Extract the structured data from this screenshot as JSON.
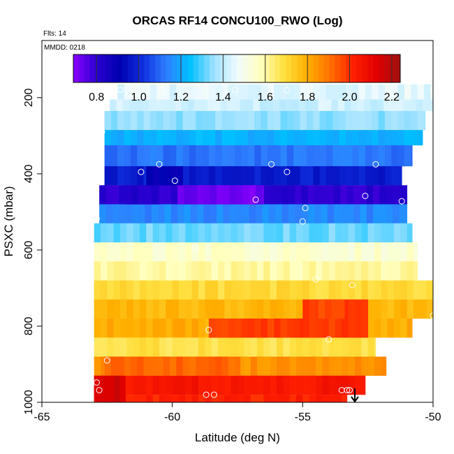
{
  "chart_data": {
    "type": "heatmap",
    "title": "ORCAS RF14 CONCU100_RWO (Log)",
    "annotations": [
      "Flts: 14",
      "MMDD: 0218"
    ],
    "xlabel": "Latitude (deg N)",
    "ylabel": "PSXC (mbar)",
    "xlim": [
      -65,
      -50
    ],
    "ylim": [
      1000,
      50
    ],
    "x_ticks": [
      -65,
      -60,
      -55,
      -50
    ],
    "x_tick_labels": [
      "-65",
      "-60",
      "-55",
      "-50"
    ],
    "y_ticks": [
      200,
      400,
      600,
      800,
      1000
    ],
    "y_tick_labels": [
      "200",
      "400",
      "600",
      "800",
      "1000"
    ],
    "colorbar": {
      "range": [
        0.69,
        2.24
      ],
      "ticks": [
        0.8,
        1.0,
        1.2,
        1.4,
        1.6,
        1.8,
        2.0,
        2.2
      ],
      "tick_labels": [
        "0.8",
        "1.0",
        "1.2",
        "1.4",
        "1.6",
        "1.8",
        "2.0",
        "2.2"
      ],
      "colors": [
        "#8b00ff",
        "#2a00d0",
        "#0000b0",
        "#1030e0",
        "#2f7fff",
        "#00c0ff",
        "#9be0ff",
        "#f0fbff",
        "#ffffc0",
        "#ffe040",
        "#ffb000",
        "#ff7000",
        "#ff2000",
        "#e00000",
        "#a01010"
      ]
    },
    "layers": [
      {
        "p_top": 165,
        "p_bot": 205,
        "lat_min": -62.1,
        "lat_max": -50,
        "value": 1.45
      },
      {
        "p_top": 205,
        "p_bot": 235,
        "lat_min": -62.4,
        "lat_max": -50,
        "value": 1.42
      },
      {
        "p_top": 235,
        "p_bot": 285,
        "lat_min": -62.6,
        "lat_max": -50.3,
        "value": 1.35
      },
      {
        "p_top": 285,
        "p_bot": 325,
        "lat_min": -62.6,
        "lat_max": -50.4,
        "value": 1.22
      },
      {
        "p_top": 325,
        "p_bot": 380,
        "lat_min": -62.6,
        "lat_max": -50.8,
        "value": 1.12
      },
      {
        "p_top": 380,
        "p_bot": 430,
        "lat_min": -62.6,
        "lat_max": -51.2,
        "value": 0.98
      },
      {
        "p_top": 430,
        "p_bot": 480,
        "lat_min": -62.8,
        "lat_max": -51.0,
        "value": 0.8
      },
      {
        "p_top": 480,
        "p_bot": 530,
        "lat_min": -62.8,
        "lat_max": -51.0,
        "value": 1.15
      },
      {
        "p_top": 530,
        "p_bot": 580,
        "lat_min": -63.0,
        "lat_max": -50.8,
        "value": 1.32
      },
      {
        "p_top": 580,
        "p_bot": 630,
        "lat_min": -63.0,
        "lat_max": -50.6,
        "value": 1.55
      },
      {
        "p_top": 630,
        "p_bot": 680,
        "lat_min": -63.0,
        "lat_max": -50.6,
        "value": 1.6
      },
      {
        "p_top": 680,
        "p_bot": 730,
        "lat_min": -63.0,
        "lat_max": -50,
        "value": 1.7
      },
      {
        "p_top": 730,
        "p_bot": 780,
        "lat_min": -63.0,
        "lat_max": -50,
        "value": 1.78
      },
      {
        "p_top": 780,
        "p_bot": 830,
        "lat_min": -63.0,
        "lat_max": -50.8,
        "value": 1.8
      },
      {
        "p_top": 830,
        "p_bot": 880,
        "lat_min": -63.0,
        "lat_max": -52.2,
        "value": 1.68
      },
      {
        "p_top": 880,
        "p_bot": 930,
        "lat_min": -63.0,
        "lat_max": -51.8,
        "value": 1.85
      },
      {
        "p_top": 930,
        "p_bot": 980,
        "lat_min": -63.0,
        "lat_max": -52.6,
        "value": 2.05
      },
      {
        "p_top": 980,
        "p_bot": 1000,
        "lat_min": -63.0,
        "lat_max": -53.3,
        "value": 2.02
      }
    ],
    "patches": [
      {
        "p_top": 430,
        "p_bot": 480,
        "lat_min": -59.8,
        "lat_max": -56.5,
        "value": 0.72
      },
      {
        "p_top": 430,
        "p_bot": 480,
        "lat_min": -61.8,
        "lat_max": -60.5,
        "value": 0.82
      },
      {
        "p_top": 380,
        "p_bot": 430,
        "lat_min": -61.0,
        "lat_max": -59.6,
        "value": 0.9
      },
      {
        "p_top": 730,
        "p_bot": 830,
        "lat_min": -55.0,
        "lat_max": -52.5,
        "value": 1.98
      },
      {
        "p_top": 780,
        "p_bot": 830,
        "lat_min": -58.6,
        "lat_max": -55.0,
        "value": 1.98
      },
      {
        "p_top": 880,
        "p_bot": 930,
        "lat_min": -62.6,
        "lat_max": -57.4,
        "value": 1.92
      },
      {
        "p_top": 930,
        "p_bot": 1000,
        "lat_min": -63.0,
        "lat_max": -61.8,
        "value": 2.15
      },
      {
        "p_top": 730,
        "p_bot": 780,
        "lat_min": -54.4,
        "lat_max": -53.4,
        "value": 1.96
      }
    ],
    "points": [
      {
        "lat": -62.0,
        "p": 180
      },
      {
        "lat": -60.4,
        "p": 180
      },
      {
        "lat": -57.6,
        "p": 180
      },
      {
        "lat": -55.6,
        "p": 180
      },
      {
        "lat": -50.0,
        "p": 180
      },
      {
        "lat": -62.7,
        "p": 290
      },
      {
        "lat": -50.0,
        "p": 290
      },
      {
        "lat": -61.2,
        "p": 395
      },
      {
        "lat": -60.5,
        "p": 375
      },
      {
        "lat": -59.9,
        "p": 418
      },
      {
        "lat": -56.2,
        "p": 375
      },
      {
        "lat": -55.6,
        "p": 395
      },
      {
        "lat": -52.2,
        "p": 375
      },
      {
        "lat": -56.8,
        "p": 468
      },
      {
        "lat": -52.6,
        "p": 458
      },
      {
        "lat": -51.2,
        "p": 472
      },
      {
        "lat": -62.9,
        "p": 518
      },
      {
        "lat": -55.0,
        "p": 525
      },
      {
        "lat": -54.9,
        "p": 490
      },
      {
        "lat": -53.1,
        "p": 692
      },
      {
        "lat": -54.5,
        "p": 677
      },
      {
        "lat": -59.1,
        "p": 595
      },
      {
        "lat": -58.6,
        "p": 810
      },
      {
        "lat": -54.0,
        "p": 835
      },
      {
        "lat": -62.5,
        "p": 890
      },
      {
        "lat": -50.0,
        "p": 772
      },
      {
        "lat": -62.9,
        "p": 948
      },
      {
        "lat": -62.8,
        "p": 968
      },
      {
        "lat": -58.4,
        "p": 980
      },
      {
        "lat": -58.7,
        "p": 980
      },
      {
        "lat": -53.5,
        "p": 968
      },
      {
        "lat": -53.3,
        "p": 968
      },
      {
        "lat": -53.2,
        "p": 968
      }
    ],
    "marker": {
      "lat": -53.0,
      "p": 1000
    }
  }
}
